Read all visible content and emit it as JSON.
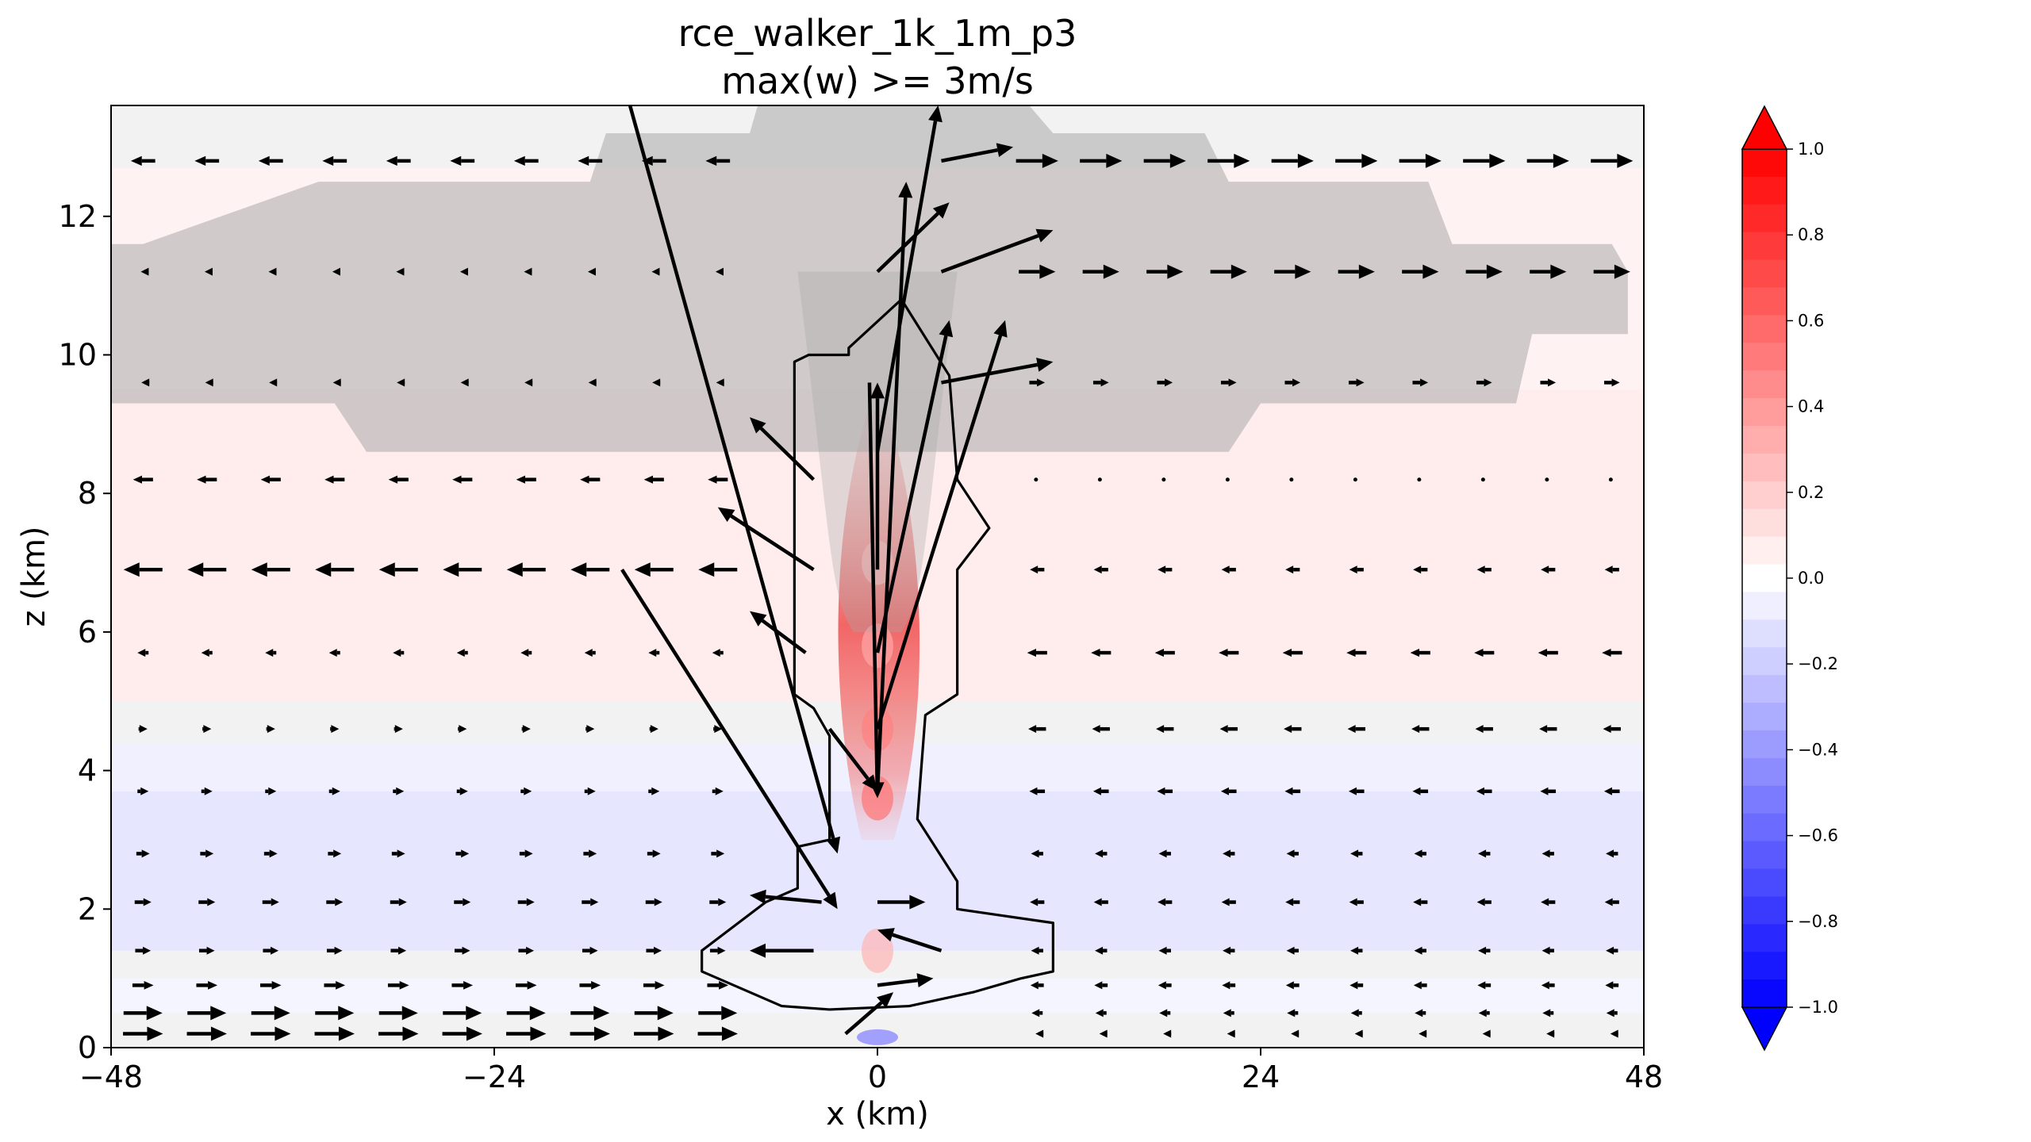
{
  "chart_data": {
    "type": "heatmap",
    "title": "rce_walker_1k_1m_p3",
    "subtitle": "max(w) >= 3m/s",
    "xlabel": "x (km)",
    "ylabel": "z (km)",
    "xlim": [
      -48,
      48
    ],
    "ylim": [
      0,
      13.6
    ],
    "x_ticks": [
      "−48",
      "−24",
      "0",
      "24",
      "48"
    ],
    "x_tick_values": [
      -48,
      -24,
      0,
      24,
      48
    ],
    "y_ticks": [
      "0",
      "2",
      "4",
      "6",
      "8",
      "10",
      "12"
    ],
    "y_tick_values": [
      0,
      2,
      4,
      6,
      8,
      10,
      12
    ],
    "colorbar": {
      "colormap": "bwr",
      "range": [
        -1.0,
        1.0
      ],
      "levels": 31,
      "extend": "both",
      "tick_labels": [
        "1.0",
        "0.8",
        "0.6",
        "0.4",
        "0.2",
        "0.0",
        "−0.2",
        "−0.4",
        "−0.6",
        "−0.8",
        "−1.0"
      ],
      "tick_values": [
        1.0,
        0.8,
        0.6,
        0.4,
        0.2,
        0.0,
        -0.2,
        -0.4,
        -0.6,
        -0.8,
        -1.0
      ]
    },
    "field_bands": [
      {
        "z0": 0.0,
        "z1": 0.5,
        "value": 0.0
      },
      {
        "z0": 0.5,
        "z1": 1.0,
        "value": -0.04
      },
      {
        "z0": 1.0,
        "z1": 1.4,
        "value": 0.0
      },
      {
        "z0": 1.4,
        "z1": 3.7,
        "value": -0.1
      },
      {
        "z0": 3.7,
        "z1": 4.4,
        "value": -0.06
      },
      {
        "z0": 4.4,
        "z1": 5.0,
        "value": 0.0
      },
      {
        "z0": 5.0,
        "z1": 9.5,
        "value": 0.07
      },
      {
        "z0": 9.5,
        "z1": 12.7,
        "value": 0.05
      },
      {
        "z0": 12.7,
        "z1": 13.6,
        "value": 0.0
      }
    ],
    "updraft_core": [
      {
        "x": 0,
        "z": 3.6,
        "value": 0.55
      },
      {
        "x": 0,
        "z": 4.6,
        "value": 0.5
      },
      {
        "x": 0,
        "z": 5.8,
        "value": 0.35
      },
      {
        "x": 0,
        "z": 7.0,
        "value": 0.25
      },
      {
        "x": 0,
        "z": 1.4,
        "value": 0.3
      }
    ],
    "cloud_region_color": "#a9a9a9",
    "arrow_color": "#000000"
  }
}
